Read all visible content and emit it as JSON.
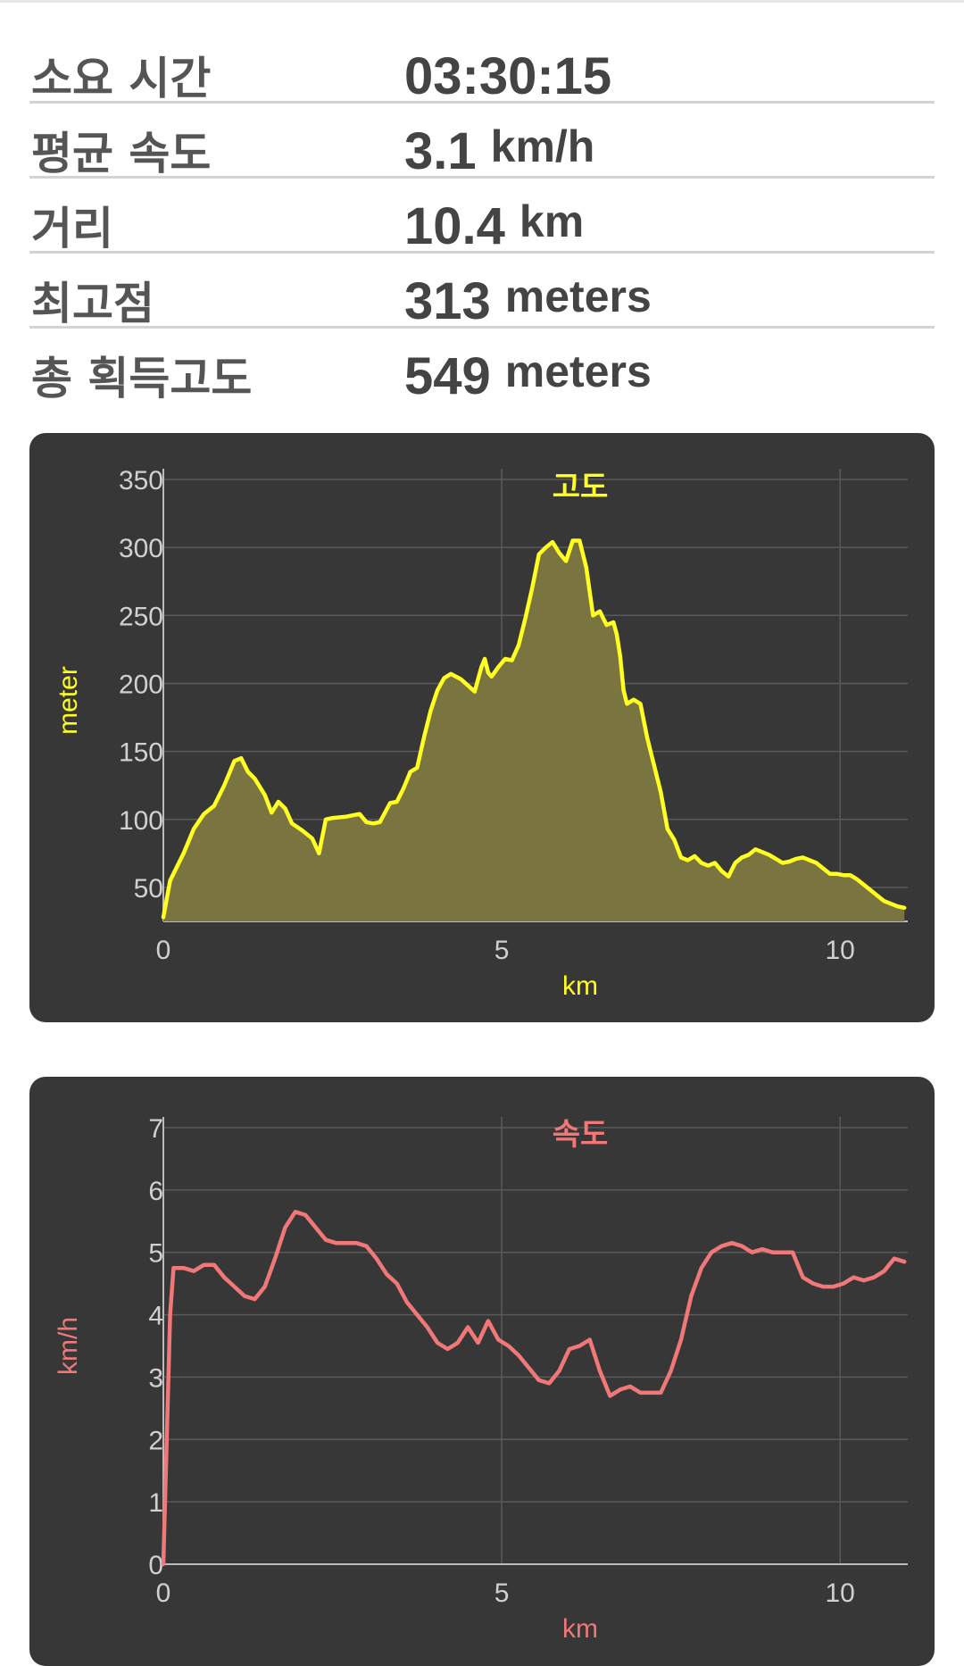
{
  "stats": [
    {
      "label": "소요 시간",
      "value": "03:30:15",
      "unit": ""
    },
    {
      "label": "평균 속도",
      "value": "3.1",
      "unit": "km/h"
    },
    {
      "label": "거리",
      "value": "10.4",
      "unit": "km"
    },
    {
      "label": "최고점",
      "value": "313",
      "unit": "meters"
    },
    {
      "label": "총 획득고도",
      "value": "549",
      "unit": "meters"
    }
  ],
  "chart_data": [
    {
      "type": "area",
      "title": "고도",
      "xlabel": "km",
      "ylabel": "meter",
      "xlim": [
        0,
        11
      ],
      "ylim": [
        25,
        350
      ],
      "xticks": [
        0,
        5,
        10
      ],
      "yticks": [
        50,
        100,
        150,
        200,
        250,
        300,
        350
      ],
      "grid": true,
      "color": "#ffff22",
      "fill": "#7a7540",
      "series": [
        {
          "x": [
            0,
            0.1,
            0.3,
            0.45,
            0.6,
            0.75,
            0.9,
            1.05,
            1.15,
            1.25,
            1.35,
            1.5,
            1.6,
            1.7,
            1.8,
            1.9,
            2.05,
            2.2,
            2.3,
            2.4,
            2.5,
            2.7,
            2.9,
            3.0,
            3.1,
            3.2,
            3.35,
            3.45,
            3.55,
            3.65,
            3.75,
            3.85,
            3.95,
            4.05,
            4.15,
            4.25,
            4.4,
            4.6,
            4.7,
            4.75,
            4.8,
            4.85,
            4.95,
            5.05,
            5.15,
            5.25,
            5.35,
            5.45,
            5.55,
            5.65,
            5.75,
            5.85,
            5.95,
            6.05,
            6.15,
            6.25,
            6.35,
            6.45,
            6.55,
            6.65,
            6.7,
            6.75,
            6.8,
            6.85,
            6.95,
            7.05,
            7.15,
            7.25,
            7.35,
            7.45,
            7.55,
            7.65,
            7.75,
            7.85,
            7.95,
            8.05,
            8.15,
            8.25,
            8.35,
            8.45,
            8.55,
            8.65,
            8.75,
            8.85,
            8.95,
            9.05,
            9.15,
            9.25,
            9.35,
            9.45,
            9.55,
            9.65,
            9.75,
            9.85,
            9.95,
            10.05,
            10.15,
            10.25,
            10.35,
            10.45,
            10.55,
            10.65,
            10.75,
            10.85,
            10.95
          ],
          "y": [
            28,
            55,
            75,
            93,
            104,
            110,
            125,
            143,
            145,
            135,
            130,
            118,
            105,
            113,
            108,
            97,
            92,
            86,
            75,
            100,
            101,
            102,
            104,
            98,
            97,
            98,
            112,
            113,
            123,
            135,
            138,
            160,
            180,
            195,
            204,
            207,
            203,
            194,
            212,
            218,
            208,
            205,
            212,
            218,
            217,
            228,
            248,
            270,
            295,
            300,
            304,
            296,
            290,
            305,
            305,
            285,
            250,
            253,
            243,
            245,
            236,
            220,
            195,
            185,
            188,
            185,
            160,
            140,
            120,
            93,
            85,
            72,
            70,
            73,
            68,
            66,
            68,
            62,
            58,
            68,
            72,
            74,
            78,
            76,
            74,
            71,
            68,
            69,
            71,
            72,
            70,
            68,
            64,
            60,
            60,
            59,
            59,
            56,
            52,
            48,
            44,
            40,
            38,
            36,
            35
          ]
        }
      ]
    },
    {
      "type": "line",
      "title": "속도",
      "xlabel": "km",
      "ylabel": "km/h",
      "xlim": [
        0,
        11
      ],
      "ylim": [
        0,
        7
      ],
      "xticks": [
        0,
        5,
        10
      ],
      "yticks": [
        0,
        1,
        2,
        3,
        4,
        5,
        6,
        7
      ],
      "grid": true,
      "color": "#f07878",
      "series": [
        {
          "x": [
            0,
            0.05,
            0.1,
            0.15,
            0.3,
            0.45,
            0.6,
            0.75,
            0.9,
            1.05,
            1.2,
            1.35,
            1.5,
            1.65,
            1.8,
            1.95,
            2.1,
            2.25,
            2.4,
            2.55,
            2.7,
            2.85,
            3.0,
            3.15,
            3.3,
            3.45,
            3.6,
            3.75,
            3.9,
            4.05,
            4.2,
            4.35,
            4.5,
            4.65,
            4.8,
            4.95,
            5.1,
            5.25,
            5.4,
            5.55,
            5.7,
            5.85,
            6.0,
            6.15,
            6.3,
            6.45,
            6.6,
            6.75,
            6.9,
            7.05,
            7.2,
            7.35,
            7.5,
            7.65,
            7.8,
            7.95,
            8.1,
            8.25,
            8.4,
            8.55,
            8.7,
            8.85,
            9.0,
            9.15,
            9.3,
            9.45,
            9.6,
            9.75,
            9.9,
            10.05,
            10.2,
            10.35,
            10.5,
            10.65,
            10.8,
            10.95
          ],
          "y": [
            0,
            2.0,
            4.0,
            4.75,
            4.75,
            4.7,
            4.8,
            4.8,
            4.6,
            4.45,
            4.3,
            4.25,
            4.45,
            4.9,
            5.4,
            5.65,
            5.6,
            5.4,
            5.2,
            5.15,
            5.15,
            5.15,
            5.1,
            4.9,
            4.65,
            4.5,
            4.2,
            4.0,
            3.8,
            3.55,
            3.45,
            3.55,
            3.8,
            3.55,
            3.9,
            3.6,
            3.5,
            3.35,
            3.15,
            2.95,
            2.9,
            3.1,
            3.45,
            3.5,
            3.6,
            3.1,
            2.7,
            2.8,
            2.85,
            2.75,
            2.75,
            2.75,
            3.1,
            3.6,
            4.3,
            4.75,
            5.0,
            5.1,
            5.15,
            5.1,
            5.0,
            5.05,
            5.0,
            5.0,
            5.0,
            4.6,
            4.5,
            4.45,
            4.45,
            4.5,
            4.6,
            4.55,
            4.6,
            4.7,
            4.9,
            4.85
          ]
        }
      ]
    }
  ]
}
